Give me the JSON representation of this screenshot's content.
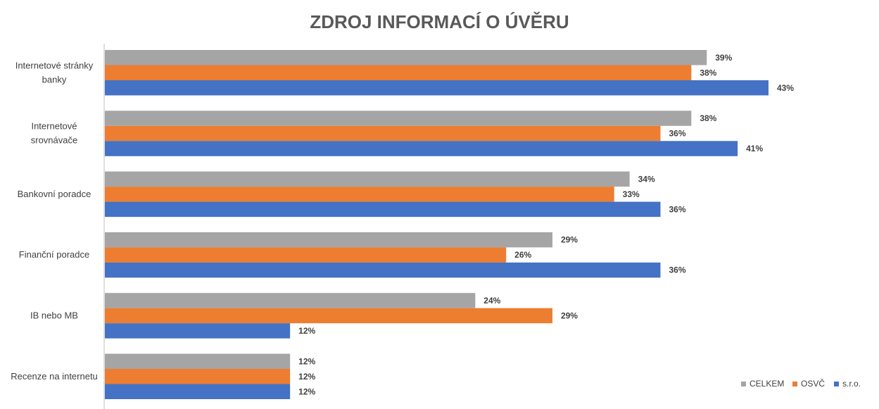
{
  "chart_data": {
    "type": "bar",
    "orientation": "horizontal",
    "title": "ZDROJ INFORMACÍ O ÚVĚRU",
    "categories": [
      [
        "Internetové stránky",
        "banky"
      ],
      [
        "Internetové",
        "srovnávače"
      ],
      [
        "Bankovní poradce"
      ],
      [
        "Finanční poradce"
      ],
      [
        "IB nebo MB"
      ],
      [
        "Recenze na internetu"
      ]
    ],
    "series": [
      {
        "name": "CELKEM",
        "color": "#A5A5A5",
        "values": [
          39,
          38,
          34,
          29,
          24,
          12
        ]
      },
      {
        "name": "OSVČ",
        "color": "#ED7D31",
        "values": [
          38,
          36,
          33,
          26,
          29,
          12
        ]
      },
      {
        "name": "s.r.o.",
        "color": "#4472C4",
        "values": [
          43,
          41,
          36,
          36,
          12,
          12
        ]
      }
    ],
    "value_suffix": "%",
    "xlim": [
      0,
      50
    ],
    "grid": false,
    "legend_position": "bottom-right"
  }
}
